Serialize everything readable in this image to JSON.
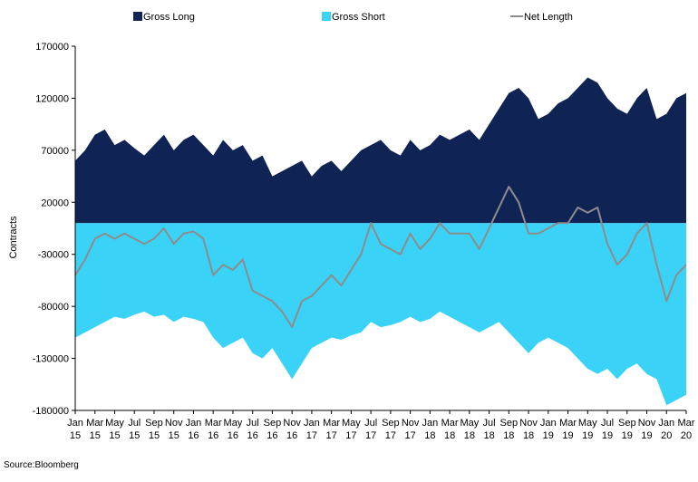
{
  "chart_data": {
    "type": "area",
    "ylabel": "Contracts",
    "source": "Source:Bloomberg",
    "ylim": [
      -180000,
      170000
    ],
    "y_ticks": [
      170000,
      120000,
      70000,
      20000,
      -30000,
      -80000,
      -130000,
      -180000
    ],
    "y_tick_labels": [
      "170000",
      "120000",
      "70000",
      "20000",
      "-30000",
      "-80000",
      "-130000",
      "-180000"
    ],
    "x_tick_labels": [
      {
        "month": "Jan",
        "year": "15"
      },
      {
        "month": "Mar",
        "year": "15"
      },
      {
        "month": "May",
        "year": "15"
      },
      {
        "month": "Jul",
        "year": "15"
      },
      {
        "month": "Sep",
        "year": "15"
      },
      {
        "month": "Nov",
        "year": "15"
      },
      {
        "month": "Jan",
        "year": "16"
      },
      {
        "month": "Mar",
        "year": "16"
      },
      {
        "month": "May",
        "year": "16"
      },
      {
        "month": "Jul",
        "year": "16"
      },
      {
        "month": "Sep",
        "year": "16"
      },
      {
        "month": "Nov",
        "year": "16"
      },
      {
        "month": "Jan",
        "year": "17"
      },
      {
        "month": "Mar",
        "year": "17"
      },
      {
        "month": "May",
        "year": "17"
      },
      {
        "month": "Jul",
        "year": "17"
      },
      {
        "month": "Sep",
        "year": "17"
      },
      {
        "month": "Nov",
        "year": "17"
      },
      {
        "month": "Jan",
        "year": "18"
      },
      {
        "month": "Mar",
        "year": "18"
      },
      {
        "month": "May",
        "year": "18"
      },
      {
        "month": "Jul",
        "year": "18"
      },
      {
        "month": "Sep",
        "year": "18"
      },
      {
        "month": "Nov",
        "year": "18"
      },
      {
        "month": "Jan",
        "year": "19"
      },
      {
        "month": "Mar",
        "year": "19"
      },
      {
        "month": "May",
        "year": "19"
      },
      {
        "month": "Jul",
        "year": "19"
      },
      {
        "month": "Sep",
        "year": "19"
      },
      {
        "month": "Nov",
        "year": "19"
      },
      {
        "month": "Jan",
        "year": "20"
      },
      {
        "month": "Mar",
        "year": "20"
      }
    ],
    "colors": {
      "gross_long": "#0f2355",
      "gross_short": "#3ad3f7",
      "net_length": "#8c8c8c"
    },
    "legend_position": "top",
    "series": [
      {
        "name": "Gross Long",
        "kind": "area",
        "x": [
          "2015-01",
          "2015-02",
          "2015-03",
          "2015-04",
          "2015-05",
          "2015-06",
          "2015-07",
          "2015-08",
          "2015-09",
          "2015-10",
          "2015-11",
          "2015-12",
          "2016-01",
          "2016-02",
          "2016-03",
          "2016-04",
          "2016-05",
          "2016-06",
          "2016-07",
          "2016-08",
          "2016-09",
          "2016-10",
          "2016-11",
          "2016-12",
          "2017-01",
          "2017-02",
          "2017-03",
          "2017-04",
          "2017-05",
          "2017-06",
          "2017-07",
          "2017-08",
          "2017-09",
          "2017-10",
          "2017-11",
          "2017-12",
          "2018-01",
          "2018-02",
          "2018-03",
          "2018-04",
          "2018-05",
          "2018-06",
          "2018-07",
          "2018-08",
          "2018-09",
          "2018-10",
          "2018-11",
          "2018-12",
          "2019-01",
          "2019-02",
          "2019-03",
          "2019-04",
          "2019-05",
          "2019-06",
          "2019-07",
          "2019-08",
          "2019-09",
          "2019-10",
          "2019-11",
          "2019-12",
          "2020-01",
          "2020-02",
          "2020-03"
        ],
        "values": [
          60000,
          70000,
          85000,
          90000,
          75000,
          80000,
          72000,
          65000,
          75000,
          85000,
          70000,
          80000,
          85000,
          75000,
          65000,
          80000,
          70000,
          75000,
          60000,
          65000,
          45000,
          50000,
          55000,
          60000,
          45000,
          55000,
          60000,
          50000,
          60000,
          70000,
          75000,
          80000,
          70000,
          65000,
          80000,
          70000,
          75000,
          85000,
          80000,
          85000,
          90000,
          80000,
          95000,
          110000,
          125000,
          130000,
          120000,
          100000,
          105000,
          115000,
          120000,
          130000,
          140000,
          135000,
          120000,
          110000,
          105000,
          120000,
          130000,
          100000,
          105000,
          120000,
          125000
        ]
      },
      {
        "name": "Gross Short",
        "kind": "area",
        "x": [
          "2015-01",
          "2015-02",
          "2015-03",
          "2015-04",
          "2015-05",
          "2015-06",
          "2015-07",
          "2015-08",
          "2015-09",
          "2015-10",
          "2015-11",
          "2015-12",
          "2016-01",
          "2016-02",
          "2016-03",
          "2016-04",
          "2016-05",
          "2016-06",
          "2016-07",
          "2016-08",
          "2016-09",
          "2016-10",
          "2016-11",
          "2016-12",
          "2017-01",
          "2017-02",
          "2017-03",
          "2017-04",
          "2017-05",
          "2017-06",
          "2017-07",
          "2017-08",
          "2017-09",
          "2017-10",
          "2017-11",
          "2017-12",
          "2018-01",
          "2018-02",
          "2018-03",
          "2018-04",
          "2018-05",
          "2018-06",
          "2018-07",
          "2018-08",
          "2018-09",
          "2018-10",
          "2018-11",
          "2018-12",
          "2019-01",
          "2019-02",
          "2019-03",
          "2019-04",
          "2019-05",
          "2019-06",
          "2019-07",
          "2019-08",
          "2019-09",
          "2019-10",
          "2019-11",
          "2019-12",
          "2020-01",
          "2020-02",
          "2020-03"
        ],
        "values": [
          -110000,
          -105000,
          -100000,
          -95000,
          -90000,
          -92000,
          -88000,
          -85000,
          -90000,
          -88000,
          -95000,
          -90000,
          -92000,
          -95000,
          -110000,
          -120000,
          -115000,
          -110000,
          -125000,
          -130000,
          -120000,
          -135000,
          -150000,
          -135000,
          -120000,
          -115000,
          -110000,
          -112000,
          -108000,
          -105000,
          -95000,
          -100000,
          -98000,
          -95000,
          -90000,
          -95000,
          -92000,
          -85000,
          -90000,
          -95000,
          -100000,
          -105000,
          -100000,
          -95000,
          -105000,
          -115000,
          -125000,
          -115000,
          -110000,
          -115000,
          -120000,
          -130000,
          -140000,
          -145000,
          -140000,
          -150000,
          -140000,
          -135000,
          -145000,
          -150000,
          -175000,
          -170000,
          -165000
        ]
      },
      {
        "name": "Net Length",
        "kind": "line",
        "x": [
          "2015-01",
          "2015-02",
          "2015-03",
          "2015-04",
          "2015-05",
          "2015-06",
          "2015-07",
          "2015-08",
          "2015-09",
          "2015-10",
          "2015-11",
          "2015-12",
          "2016-01",
          "2016-02",
          "2016-03",
          "2016-04",
          "2016-05",
          "2016-06",
          "2016-07",
          "2016-08",
          "2016-09",
          "2016-10",
          "2016-11",
          "2016-12",
          "2017-01",
          "2017-02",
          "2017-03",
          "2017-04",
          "2017-05",
          "2017-06",
          "2017-07",
          "2017-08",
          "2017-09",
          "2017-10",
          "2017-11",
          "2017-12",
          "2018-01",
          "2018-02",
          "2018-03",
          "2018-04",
          "2018-05",
          "2018-06",
          "2018-07",
          "2018-08",
          "2018-09",
          "2018-10",
          "2018-11",
          "2018-12",
          "2019-01",
          "2019-02",
          "2019-03",
          "2019-04",
          "2019-05",
          "2019-06",
          "2019-07",
          "2019-08",
          "2019-09",
          "2019-10",
          "2019-11",
          "2019-12",
          "2020-01",
          "2020-02",
          "2020-03"
        ],
        "values": [
          -50000,
          -35000,
          -15000,
          -10000,
          -15000,
          -10000,
          -15000,
          -20000,
          -15000,
          -5000,
          -20000,
          -10000,
          -8000,
          -15000,
          -50000,
          -40000,
          -45000,
          -35000,
          -65000,
          -70000,
          -75000,
          -85000,
          -100000,
          -75000,
          -70000,
          -60000,
          -50000,
          -60000,
          -45000,
          -30000,
          0,
          -20000,
          -25000,
          -30000,
          -10000,
          -25000,
          -15000,
          0,
          -10000,
          -10000,
          -10000,
          -25000,
          -5000,
          15000,
          35000,
          20000,
          -10000,
          -10000,
          -5000,
          0,
          0,
          15000,
          10000,
          15000,
          -20000,
          -40000,
          -30000,
          -10000,
          0,
          -40000,
          -75000,
          -50000,
          -40000
        ]
      }
    ]
  }
}
